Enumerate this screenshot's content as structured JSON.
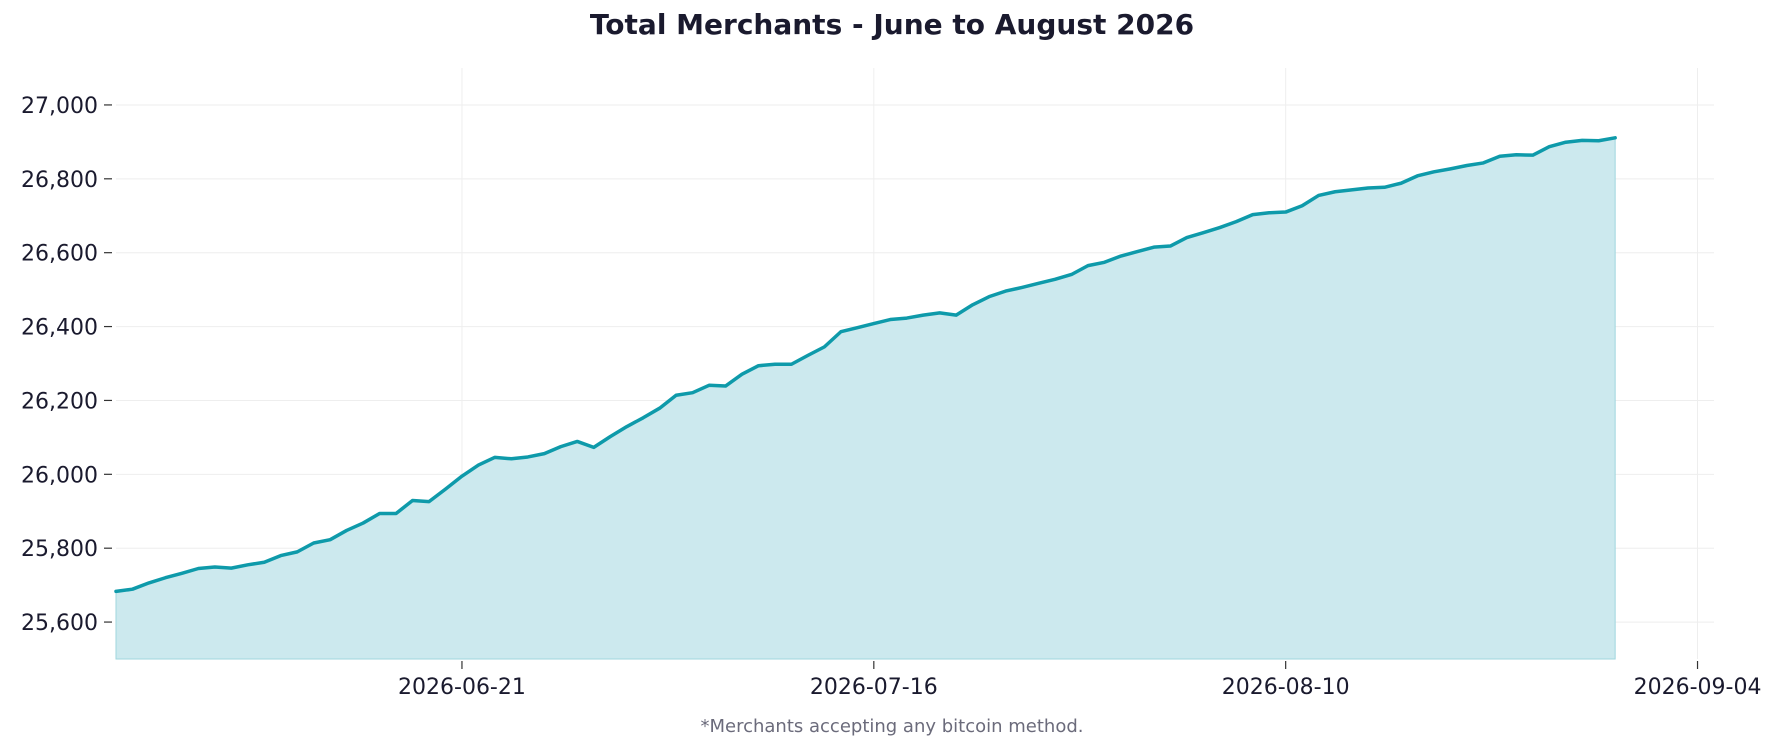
{
  "chart_data": {
    "type": "area",
    "title": "Total Merchants - June to August 2026",
    "footnote": "*Merchants accepting any bitcoin method.",
    "xlabel": "",
    "ylabel": "",
    "x_start": "2026-05-31",
    "x_step_days": 1,
    "values": [
      25683,
      25689,
      25706,
      25720,
      25732,
      25745,
      25749,
      25746,
      25755,
      25762,
      25780,
      25790,
      25814,
      25823,
      25848,
      25868,
      25894,
      25894,
      25929,
      25926,
      25960,
      25995,
      26025,
      26046,
      26042,
      26047,
      26056,
      26075,
      26089,
      26073,
      26102,
      26129,
      26153,
      26179,
      26214,
      26221,
      26241,
      26239,
      26271,
      26294,
      26298,
      26298,
      26322,
      26345,
      26386,
      26397,
      26408,
      26419,
      26423,
      26431,
      26437,
      26431,
      26459,
      26481,
      26496,
      26506,
      26517,
      26528,
      26541,
      26565,
      26574,
      26591,
      26603,
      26615,
      26618,
      26641,
      26654,
      26668,
      26684,
      26703,
      26708,
      26710,
      26727,
      26755,
      26765,
      26770,
      26775,
      26777,
      26788,
      26808,
      26819,
      26827,
      26836,
      26843,
      26861,
      26865,
      26864,
      26887,
      26899,
      26904,
      26903,
      26911
    ],
    "xlim": [
      "2026-05-31",
      "2026-09-05"
    ],
    "ylim": [
      25500,
      27100
    ],
    "x_ticks": [
      "2026-06-21",
      "2026-07-16",
      "2026-08-10",
      "2026-09-04"
    ],
    "y_ticks": [
      25600,
      25800,
      26000,
      26200,
      26400,
      26600,
      26800,
      27000
    ],
    "y_tick_labels": [
      "25,600",
      "25,800",
      "26,000",
      "26,200",
      "26,400",
      "26,600",
      "26,800",
      "27,000"
    ],
    "grid": true,
    "line_color": "#0e9aaa",
    "fill_color": "#cce9ee"
  }
}
